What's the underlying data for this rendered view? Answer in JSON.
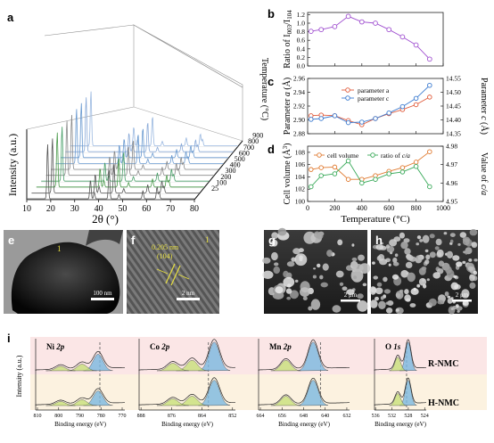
{
  "panels": {
    "a": {
      "label": "a",
      "ylabel": "Intensity (a.u.)",
      "xlabel": "2θ (°)",
      "xticks": [
        "10",
        "20",
        "30",
        "40",
        "50",
        "60",
        "70",
        "80"
      ],
      "zlabel": "Temperature (°C)",
      "zticks": [
        "25",
        "100",
        "200",
        "300",
        "400",
        "500",
        "600",
        "700",
        "800",
        "900"
      ]
    },
    "b": {
      "label": "b",
      "ylabel": "Ratio of I(003)/I(104)",
      "yticks": [
        "0.0",
        "0.2",
        "0.4",
        "0.6",
        "0.8",
        "1.0",
        "1.2"
      ]
    },
    "c": {
      "label": "c",
      "ylabel_left": "Parameter a (Å)",
      "ylabel_right": "Parameter c (Å)",
      "yticks_left": [
        "2.88",
        "2.90",
        "2.92",
        "2.94",
        "2.96"
      ],
      "yticks_right": [
        "14.35",
        "14.40",
        "14.45",
        "14.50",
        "14.55"
      ],
      "legend": [
        "parameter a",
        "parameter c"
      ]
    },
    "d": {
      "label": "d",
      "ylabel_left": "Cell volume (Å³)",
      "ylabel_right": "Value of c/a",
      "yticks_left": [
        "100",
        "102",
        "104",
        "106",
        "108"
      ],
      "yticks_right": [
        "4.95",
        "4.96",
        "4.97",
        "4.98"
      ],
      "legend": [
        "cell volume",
        "ratio of c/a"
      ],
      "xlabel": "Temperature (°C)",
      "xticks": [
        "0",
        "200",
        "400",
        "600",
        "800",
        "1000"
      ]
    },
    "e": {
      "label": "e",
      "marker": "1",
      "scale": "100 nm"
    },
    "f": {
      "label": "f",
      "marker": "1",
      "spacing": "0.205 nm",
      "plane": "(104)",
      "scale": "2 nm"
    },
    "g": {
      "label": "g",
      "scale": "2 μm"
    },
    "h": {
      "label": "h",
      "scale": "2 μm"
    },
    "i": {
      "label": "i",
      "ylabel": "Intensity (a.u.)",
      "xlabel": "Binding energy (eV)",
      "rows": [
        "R-NMC",
        "H-NMC"
      ],
      "subpanels": [
        {
          "title": "Ni 2p",
          "ticks": [
            "810",
            "800",
            "790",
            "780",
            "770"
          ]
        },
        {
          "title": "Co 2p",
          "ticks": [
            "888",
            "876",
            "864",
            "852"
          ]
        },
        {
          "title": "Mn 2p",
          "ticks": [
            "664",
            "656",
            "648",
            "640",
            "632"
          ]
        },
        {
          "title": "O 1s",
          "ticks": [
            "536",
            "532",
            "528",
            "524"
          ]
        }
      ]
    }
  },
  "chart_data": [
    {
      "type": "line",
      "panel": "b",
      "x": [
        25,
        100,
        200,
        300,
        400,
        500,
        600,
        700,
        800,
        900
      ],
      "values": [
        0.81,
        0.85,
        0.92,
        1.16,
        1.03,
        1.0,
        0.85,
        0.68,
        0.49,
        0.16
      ],
      "ylabel": "Ratio of I(003)/I(104)",
      "ylim": [
        0,
        1.25
      ],
      "xlim": [
        0,
        1000
      ],
      "color": "#a050d0"
    },
    {
      "type": "line",
      "panel": "c",
      "x": [
        25,
        100,
        200,
        300,
        400,
        500,
        600,
        700,
        800,
        900
      ],
      "series": [
        {
          "name": "parameter a",
          "axis": "left",
          "color": "#e05a3a",
          "values": [
            2.906,
            2.907,
            2.906,
            2.899,
            2.893,
            2.902,
            2.909,
            2.915,
            2.922,
            2.933
          ]
        },
        {
          "name": "parameter c",
          "axis": "right",
          "color": "#3a7ad0",
          "values": [
            14.402,
            14.405,
            14.415,
            14.39,
            14.392,
            14.405,
            14.425,
            14.448,
            14.478,
            14.525
          ]
        }
      ],
      "ylim_left": [
        2.88,
        2.96
      ],
      "ylim_right": [
        14.35,
        14.55
      ],
      "xlim": [
        0,
        1000
      ]
    },
    {
      "type": "line",
      "panel": "d",
      "x": [
        25,
        100,
        200,
        300,
        400,
        500,
        600,
        700,
        800,
        900
      ],
      "series": [
        {
          "name": "cell volume",
          "axis": "left",
          "color": "#e07a30",
          "values": [
            105.2,
            105.5,
            105.6,
            103.6,
            103.6,
            104.2,
            104.9,
            105.5,
            106.4,
            108.1
          ]
        },
        {
          "name": "ratio of c/a",
          "axis": "right",
          "color": "#3aaa5a",
          "values": [
            4.958,
            4.964,
            4.965,
            4.972,
            4.96,
            4.962,
            4.965,
            4.966,
            4.969,
            4.958
          ]
        }
      ],
      "xlabel": "Temperature (°C)",
      "ylim_left": [
        100,
        109
      ],
      "ylim_right": [
        4.95,
        4.98
      ],
      "xlim": [
        0,
        1000
      ]
    }
  ]
}
